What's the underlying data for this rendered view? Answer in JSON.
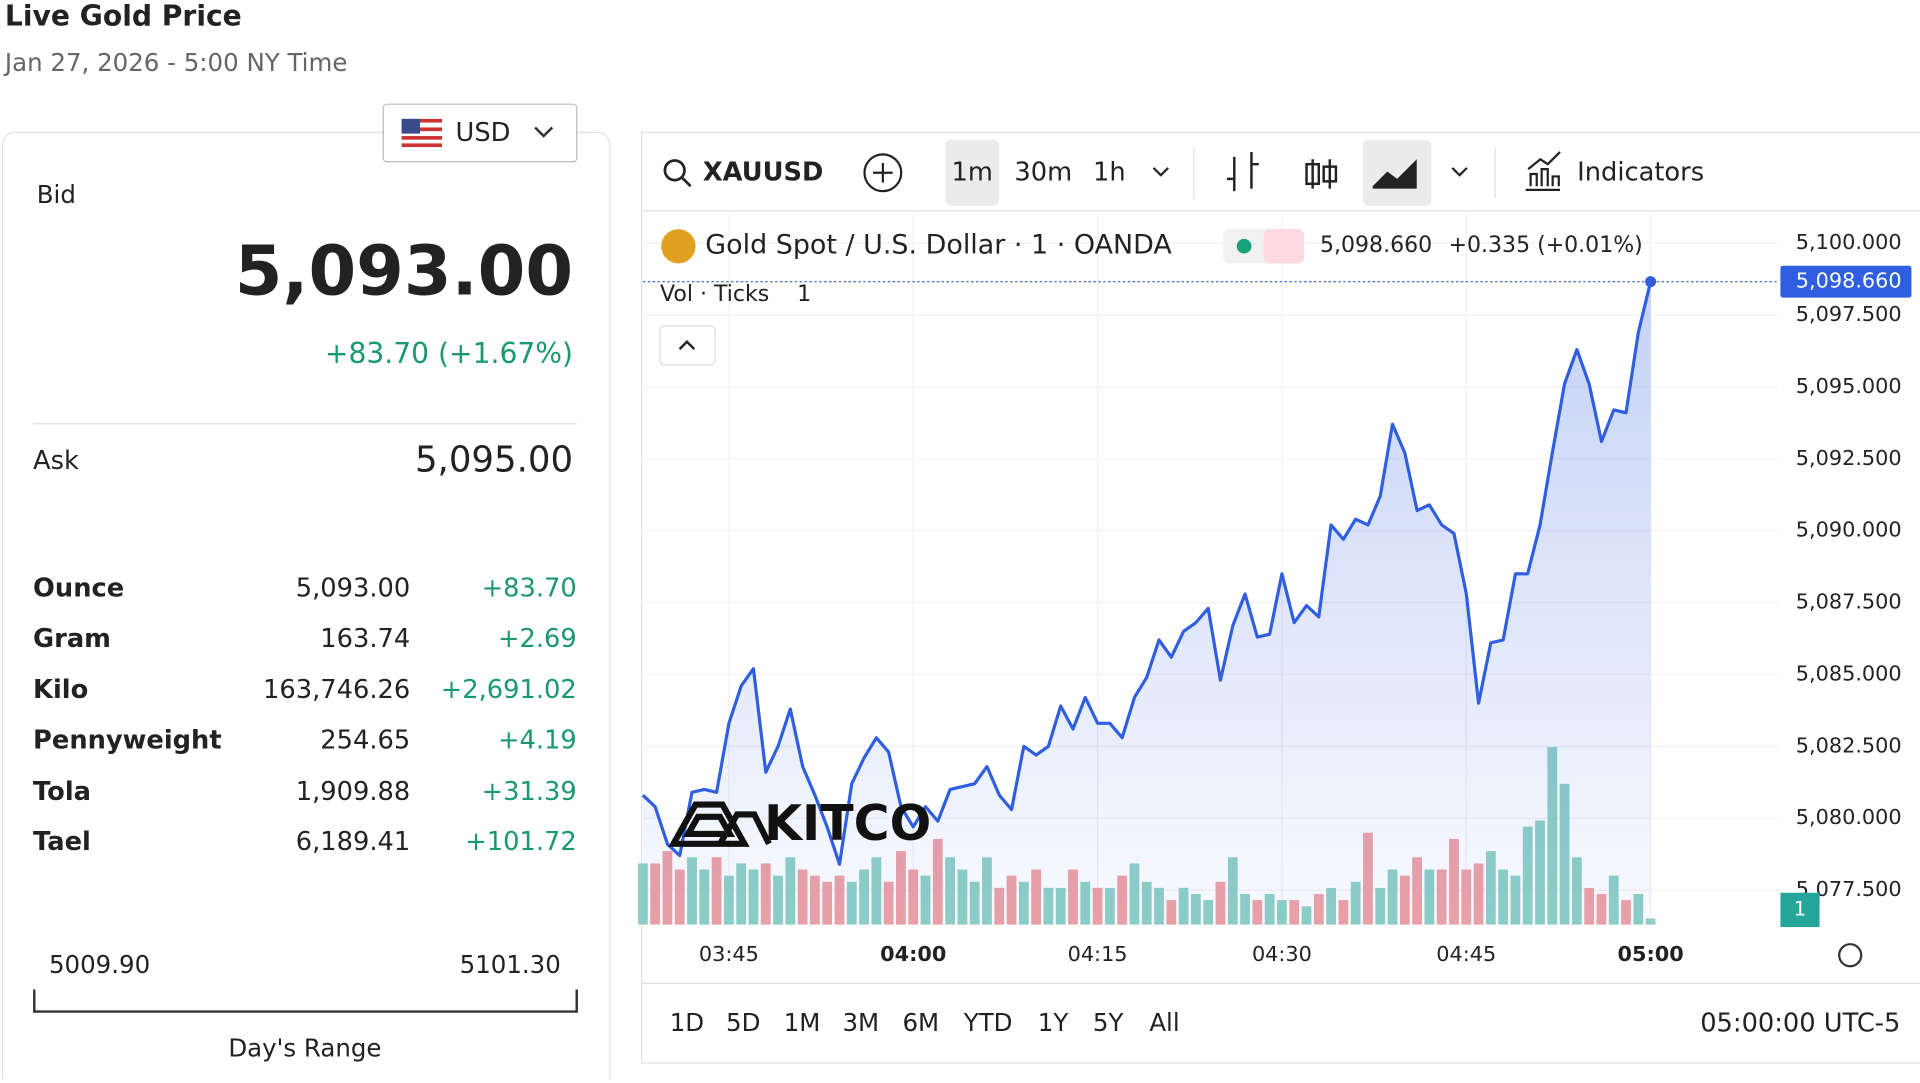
{
  "header": {
    "title": "Live Gold Price",
    "timestamp": "Jan 27, 2026 - 5:00 NY Time"
  },
  "currency": "USD",
  "quote": {
    "bid_label": "Bid",
    "bid": "5,093.00",
    "change": "+83.70 (+1.67%)",
    "ask_label": "Ask",
    "ask": "5,095.00"
  },
  "units": {
    "rows": [
      [
        "Ounce",
        "5,093.00",
        "+83.70"
      ],
      [
        "Gram",
        "163.74",
        "+2.69"
      ],
      [
        "Kilo",
        "163,746.26",
        "+2,691.02"
      ],
      [
        "Pennyweight",
        "254.65",
        "+4.19"
      ],
      [
        "Tola",
        "1,909.88",
        "+31.39"
      ],
      [
        "Tael",
        "6,189.41",
        "+101.72"
      ]
    ]
  },
  "day_range": {
    "low": "5009.90",
    "high": "5101.30",
    "label": "Day's Range"
  },
  "toolbar": {
    "symbol": "XAUUSD",
    "intervals": [
      "1m",
      "30m",
      "1h"
    ],
    "indicators": "Indicators"
  },
  "ranges": [
    "1D",
    "5D",
    "1M",
    "3M",
    "6M",
    "YTD",
    "1Y",
    "5Y",
    "All"
  ],
  "clock": "05:00:00 UTC-5",
  "chart_data": {
    "type": "line",
    "title": "Gold Spot / U.S. Dollar · 1 · OANDA",
    "last_price_label": "5,098.660",
    "change_label": "+0.335 (+0.01%)",
    "watermark": "KITCO",
    "x": [
      "03:38",
      "03:39",
      "03:40",
      "03:41",
      "03:42",
      "03:43",
      "03:44",
      "03:45",
      "03:46",
      "03:47",
      "03:48",
      "03:49",
      "03:50",
      "03:51",
      "03:52",
      "03:53",
      "03:54",
      "03:55",
      "03:56",
      "03:57",
      "03:58",
      "03:59",
      "04:00",
      "04:01",
      "04:02",
      "04:03",
      "04:04",
      "04:05",
      "04:06",
      "04:07",
      "04:08",
      "04:09",
      "04:10",
      "04:11",
      "04:12",
      "04:13",
      "04:14",
      "04:15",
      "04:16",
      "04:17",
      "04:18",
      "04:19",
      "04:20",
      "04:21",
      "04:22",
      "04:23",
      "04:24",
      "04:25",
      "04:26",
      "04:27",
      "04:28",
      "04:29",
      "04:30",
      "04:31",
      "04:32",
      "04:33",
      "04:34",
      "04:35",
      "04:36",
      "04:37",
      "04:38",
      "04:39",
      "04:40",
      "04:41",
      "04:42",
      "04:43",
      "04:44",
      "04:45",
      "04:46",
      "04:47",
      "04:48",
      "04:49",
      "04:50",
      "04:51",
      "04:52",
      "04:53",
      "04:54",
      "04:55",
      "04:56",
      "04:57",
      "04:58",
      "04:59",
      "05:00"
    ],
    "xlim": [
      "03:38",
      "05:00"
    ],
    "xticks": [
      "03:45",
      "04:00",
      "04:15",
      "04:30",
      "04:45",
      "05:00"
    ],
    "ylim": [
      5076.3,
      5101.0
    ],
    "yticks": [
      {
        "value": 5077.5,
        "label": "5,077.500"
      },
      {
        "value": 5080,
        "label": "5,080.000"
      },
      {
        "value": 5082.5,
        "label": "5,082.500"
      },
      {
        "value": 5085,
        "label": "5,085.000"
      },
      {
        "value": 5087.5,
        "label": "5,087.500"
      },
      {
        "value": 5090,
        "label": "5,090.000"
      },
      {
        "value": 5092.5,
        "label": "5,092.500"
      },
      {
        "value": 5095,
        "label": "5,095.000"
      },
      {
        "value": 5097.5,
        "label": "5,097.500"
      },
      {
        "value": 5100,
        "label": "5,100.000"
      }
    ],
    "grid": true,
    "series": [
      {
        "color": "#2f5fe0",
        "values": [
          5080.8,
          5080.4,
          5079.1,
          5078.7,
          5080.9,
          5081.0,
          5080.9,
          5083.3,
          5084.6,
          5085.2,
          5081.6,
          5082.5,
          5083.8,
          5081.8,
          5080.8,
          5079.7,
          5078.4,
          5081.2,
          5082.1,
          5082.8,
          5082.3,
          5080.4,
          5079.7,
          5080.4,
          5079.9,
          5081.0,
          5081.1,
          5081.2,
          5081.8,
          5080.8,
          5080.3,
          5082.5,
          5082.2,
          5082.5,
          5083.9,
          5083.1,
          5084.2,
          5083.3,
          5083.3,
          5082.8,
          5084.2,
          5084.9,
          5086.2,
          5085.6,
          5086.5,
          5086.8,
          5087.3,
          5084.8,
          5086.7,
          5087.8,
          5086.3,
          5086.4,
          5088.5,
          5086.8,
          5087.4,
          5087.0,
          5090.2,
          5089.7,
          5090.4,
          5090.2,
          5091.2,
          5093.7,
          5092.7,
          5090.7,
          5090.9,
          5090.2,
          5089.9,
          5087.8,
          5084.0,
          5086.1,
          5086.2,
          5088.5,
          5088.5,
          5090.2,
          5092.7,
          5095.1,
          5096.3,
          5095.1,
          5093.1,
          5094.2,
          5094.1,
          5096.9,
          5098.66
        ]
      }
    ],
    "volume": {
      "label": "Vol · Ticks",
      "setting": "1",
      "scale_tag": "1",
      "up_color": "#8fd0c6",
      "down_color": "#eea2a6",
      "values": [
        50,
        50,
        60,
        45,
        55,
        45,
        55,
        40,
        50,
        45,
        50,
        40,
        55,
        45,
        40,
        35,
        40,
        35,
        45,
        55,
        35,
        60,
        45,
        40,
        70,
        55,
        45,
        35,
        55,
        30,
        40,
        35,
        45,
        30,
        30,
        45,
        35,
        30,
        30,
        40,
        50,
        35,
        30,
        20,
        30,
        25,
        20,
        35,
        55,
        25,
        20,
        25,
        20,
        20,
        15,
        25,
        30,
        20,
        35,
        75,
        30,
        45,
        40,
        55,
        45,
        45,
        70,
        45,
        50,
        60,
        45,
        40,
        80,
        85,
        145,
        115,
        55,
        30,
        25,
        40,
        20,
        25,
        5
      ]
    }
  }
}
